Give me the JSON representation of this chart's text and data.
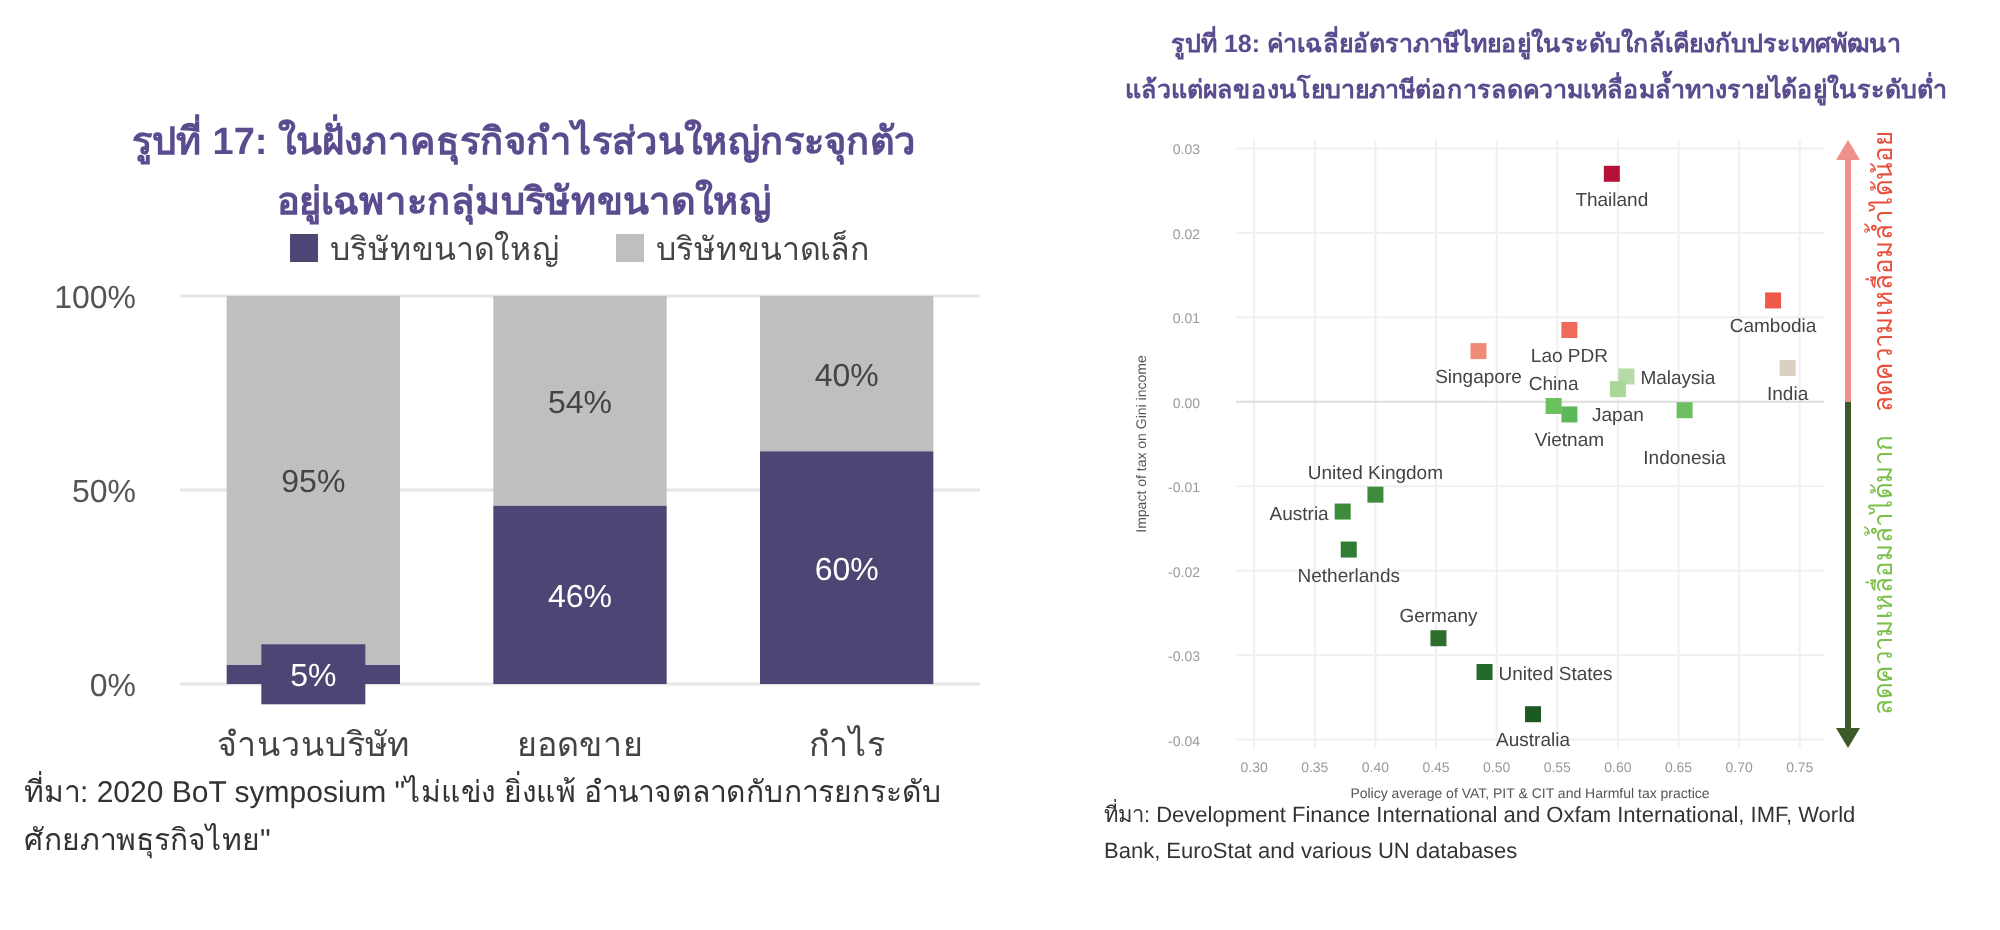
{
  "chart_data": [
    {
      "type": "bar",
      "stacked": true,
      "title": "รูปที่ 17: ในฝั่งภาคธุรกิจกำไรส่วนใหญ่กระจุกตัว\nอยู่เฉพาะกลุ่มบริษัทขนาดใหญ่",
      "categories": [
        "จำนวนบริษัท",
        "ยอดขาย",
        "กำไร"
      ],
      "series": [
        {
          "name": "บริษัทขนาดใหญ่",
          "color": "#4b4673",
          "values": [
            5,
            46,
            60
          ],
          "value_labels": [
            "5%",
            "46%",
            "60%"
          ]
        },
        {
          "name": "บริษัทขนาดเล็ก",
          "color": "#bfbfbf",
          "values": [
            95,
            54,
            40
          ],
          "value_labels": [
            "95%",
            "54%",
            "40%"
          ]
        }
      ],
      "ylim": [
        0,
        100
      ],
      "yticks": [
        {
          "value": 0,
          "label": "0%"
        },
        {
          "value": 50,
          "label": "50%"
        },
        {
          "value": 100,
          "label": "100%"
        }
      ],
      "grid": "y",
      "legend": "top",
      "annotations": [
        "ที่มา: 2020 BoT symposium \"ไม่แข่ง ยิ่งแพ้ อำนาจตลาดกับการยกระดับศักยภาพธุรกิจไทย\""
      ]
    },
    {
      "type": "scatter",
      "title": "รูปที่ 18: ค่าเฉลี่ยอัตราภาษีไทยอยู่ในระดับใกล้เคียงกับประเทศพัฒนา\nแล้วแต่ผลของนโยบายภาษีต่อการลดความเหลื่อมล้ำทางรายได้อยู่ในระดับต่ำ",
      "xlabel": "Policy average of VAT, PIT & CIT and Harmful tax practice",
      "ylabel": "Impact of tax on Gini income",
      "marker": "square",
      "grid": true,
      "series": [
        {
          "name": "Thailand",
          "color": "#b5123a",
          "x": [
            0.595
          ],
          "values": [
            0.027
          ]
        },
        {
          "name": "Singapore",
          "color": "#f08a78",
          "x": [
            0.485
          ],
          "values": [
            0.006
          ]
        },
        {
          "name": "Lao PDR",
          "color": "#f06a5a",
          "x": [
            0.56
          ],
          "values": [
            0.0085
          ]
        },
        {
          "name": "Cambodia",
          "color": "#f05a4a",
          "x": [
            0.728
          ],
          "values": [
            0.012
          ]
        },
        {
          "name": "Malaysia",
          "color": "#b7dba8",
          "x": [
            0.607
          ],
          "values": [
            0.003
          ]
        },
        {
          "name": "Japan",
          "color": "#a8d898",
          "x": [
            0.6
          ],
          "values": [
            0.0015
          ]
        },
        {
          "name": "India",
          "color": "#d8d0c0",
          "x": [
            0.74
          ],
          "values": [
            0.004
          ]
        },
        {
          "name": "China",
          "color": "#6cc060",
          "x": [
            0.547
          ],
          "values": [
            -0.0005
          ]
        },
        {
          "name": "Vietnam",
          "color": "#5cb858",
          "x": [
            0.56
          ],
          "values": [
            -0.0015
          ]
        },
        {
          "name": "Indonesia",
          "color": "#6cc060",
          "x": [
            0.655
          ],
          "values": [
            -0.001
          ]
        },
        {
          "name": "United Kingdom",
          "color": "#3c8c3c",
          "x": [
            0.4
          ],
          "values": [
            -0.011
          ]
        },
        {
          "name": "Austria",
          "color": "#3c8c3c",
          "x": [
            0.373
          ],
          "values": [
            -0.013
          ]
        },
        {
          "name": "Netherlands",
          "color": "#2f7d32",
          "x": [
            0.378
          ],
          "values": [
            -0.0175
          ]
        },
        {
          "name": "Germany",
          "color": "#2c6e2c",
          "x": [
            0.452
          ],
          "values": [
            -0.028
          ]
        },
        {
          "name": "United States",
          "color": "#236a2c",
          "x": [
            0.49
          ],
          "values": [
            -0.032
          ]
        },
        {
          "name": "Australia",
          "color": "#1c5a24",
          "x": [
            0.53
          ],
          "values": [
            -0.037
          ]
        }
      ],
      "xlim": [
        0.285,
        0.77
      ],
      "xticks": [
        {
          "value": 0.3,
          "label": "0.30"
        },
        0.35,
        {
          "value": 0.4,
          "label": "0.40"
        },
        0.45,
        {
          "value": 0.5,
          "label": "0.50"
        },
        0.55,
        {
          "value": 0.6,
          "label": "0.60"
        },
        0.65,
        {
          "value": 0.7,
          "label": "0.70"
        },
        0.75
      ],
      "ylim": [
        -0.041,
        0.031
      ],
      "yticks": [
        -0.04,
        -0.03,
        -0.02,
        -0.01,
        {
          "value": 0,
          "label": "0.00"
        },
        0.01,
        0.02,
        0.03
      ],
      "annotations": [
        "ลดความเหลื่อมล้ำได้น้อย",
        "ลดความเหลื่อมล้ำได้มาก",
        "ที่มา: Development Finance International and Oxfam International, IMF, World Bank, EuroStat and various UN databases"
      ]
    }
  ]
}
